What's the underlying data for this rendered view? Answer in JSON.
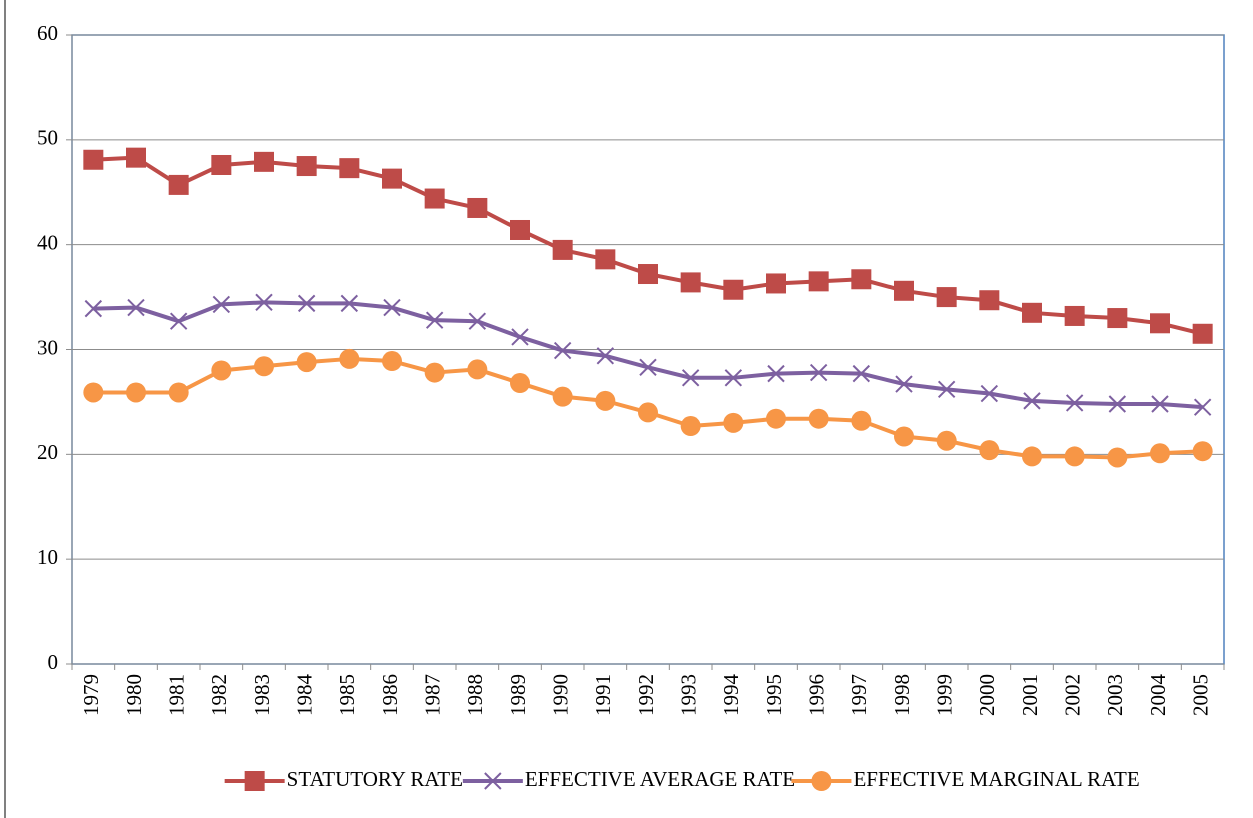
{
  "chart_data": {
    "type": "line",
    "categories": [
      "1979",
      "1980",
      "1981",
      "1982",
      "1983",
      "1984",
      "1985",
      "1986",
      "1987",
      "1988",
      "1989",
      "1990",
      "1991",
      "1992",
      "1993",
      "1994",
      "1995",
      "1996",
      "1997",
      "1998",
      "1999",
      "2000",
      "2001",
      "2002",
      "2003",
      "2004",
      "2005"
    ],
    "series": [
      {
        "name": "STATUTORY RATE",
        "color": "#be4b48",
        "marker": "square",
        "values": [
          48.1,
          48.3,
          45.7,
          47.6,
          47.9,
          47.5,
          47.3,
          46.3,
          44.4,
          43.5,
          41.4,
          39.5,
          38.6,
          37.2,
          36.4,
          35.7,
          36.3,
          36.5,
          36.7,
          35.6,
          35.0,
          34.7,
          33.5,
          33.2,
          33.0,
          32.5,
          31.5
        ]
      },
      {
        "name": "EFFECTIVE AVERAGE RATE",
        "color": "#7d60a0",
        "marker": "x",
        "values": [
          33.9,
          34.0,
          32.7,
          34.3,
          34.5,
          34.4,
          34.4,
          34.0,
          32.8,
          32.7,
          31.2,
          29.9,
          29.4,
          28.3,
          27.3,
          27.3,
          27.7,
          27.8,
          27.7,
          26.7,
          26.2,
          25.8,
          25.1,
          24.9,
          24.8,
          24.8,
          24.5
        ]
      },
      {
        "name": "EFFECTIVE MARGINAL RATE",
        "color": "#f79646",
        "marker": "circle",
        "values": [
          25.9,
          25.9,
          25.9,
          28.0,
          28.4,
          28.8,
          29.1,
          28.9,
          27.8,
          28.1,
          26.8,
          25.5,
          25.1,
          24.0,
          22.7,
          23.0,
          23.4,
          23.4,
          23.2,
          21.7,
          21.3,
          20.4,
          19.8,
          19.8,
          19.7,
          20.1,
          20.3
        ]
      }
    ],
    "ylim": [
      0,
      60
    ],
    "yticks": [
      0,
      10,
      20,
      30,
      40,
      50,
      60
    ],
    "grid": true,
    "legend": "bottom"
  }
}
